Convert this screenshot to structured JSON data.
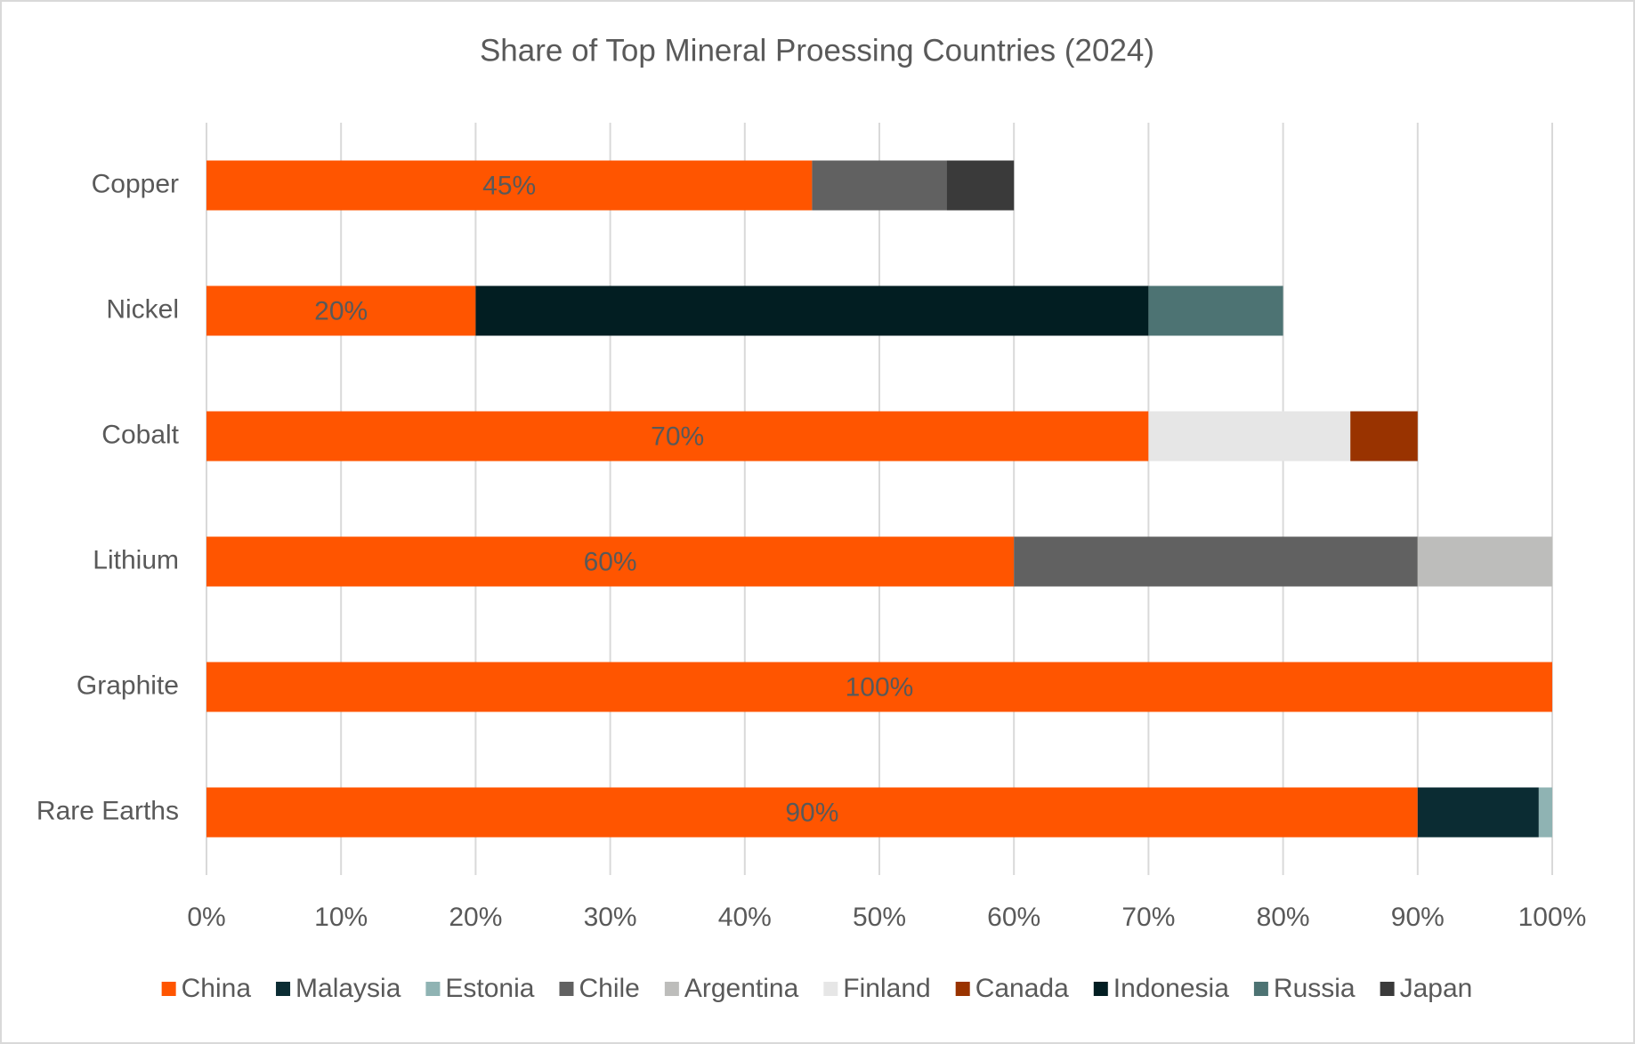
{
  "chart_data": {
    "type": "stacked-barh",
    "title": "Share of Top Mineral Proessing Countries (2024)",
    "categories": [
      "Copper",
      "Nickel",
      "Cobalt",
      "Lithium",
      "Graphite",
      "Rare Earths"
    ],
    "series": [
      {
        "name": "China",
        "color": "#ff5500",
        "values": [
          45,
          20,
          70,
          60,
          100,
          90
        ],
        "value_labels": [
          "45%",
          "20%",
          "70%",
          "60%",
          "100%",
          "90%"
        ]
      },
      {
        "name": "Malaysia",
        "color": "#0b2c33",
        "values": [
          null,
          null,
          null,
          null,
          null,
          9
        ]
      },
      {
        "name": "Estonia",
        "color": "#8fb3b3",
        "values": [
          null,
          null,
          null,
          null,
          null,
          1
        ]
      },
      {
        "name": "Chile",
        "color": "#616161",
        "values": [
          10,
          null,
          null,
          30,
          null,
          null
        ]
      },
      {
        "name": "Argentina",
        "color": "#bdbdbb",
        "values": [
          null,
          null,
          null,
          10,
          null,
          null
        ]
      },
      {
        "name": "Finland",
        "color": "#e6e6e6",
        "values": [
          null,
          null,
          15,
          null,
          null,
          null
        ]
      },
      {
        "name": "Canada",
        "color": "#993300",
        "values": [
          null,
          null,
          5,
          null,
          null,
          null
        ]
      },
      {
        "name": "Indonesia",
        "color": "#021e22",
        "values": [
          null,
          50,
          null,
          null,
          null,
          null
        ]
      },
      {
        "name": "Russia",
        "color": "#4d7373",
        "values": [
          null,
          10,
          null,
          null,
          null,
          null
        ]
      },
      {
        "name": "Japan",
        "color": "#3a3a3a",
        "values": [
          5,
          null,
          null,
          null,
          null,
          null
        ]
      }
    ],
    "xlim": [
      0,
      100
    ],
    "xticks": [
      {
        "value": 0,
        "label": "0%"
      },
      {
        "value": 10,
        "label": "10%"
      },
      {
        "value": 20,
        "label": "20%"
      },
      {
        "value": 30,
        "label": "30%"
      },
      {
        "value": 40,
        "label": "40%"
      },
      {
        "value": 50,
        "label": "50%"
      },
      {
        "value": 60,
        "label": "60%"
      },
      {
        "value": 70,
        "label": "70%"
      },
      {
        "value": 80,
        "label": "80%"
      },
      {
        "value": 90,
        "label": "90%"
      },
      {
        "value": 100,
        "label": "100%"
      }
    ],
    "grid": true,
    "legend": "bottom"
  }
}
